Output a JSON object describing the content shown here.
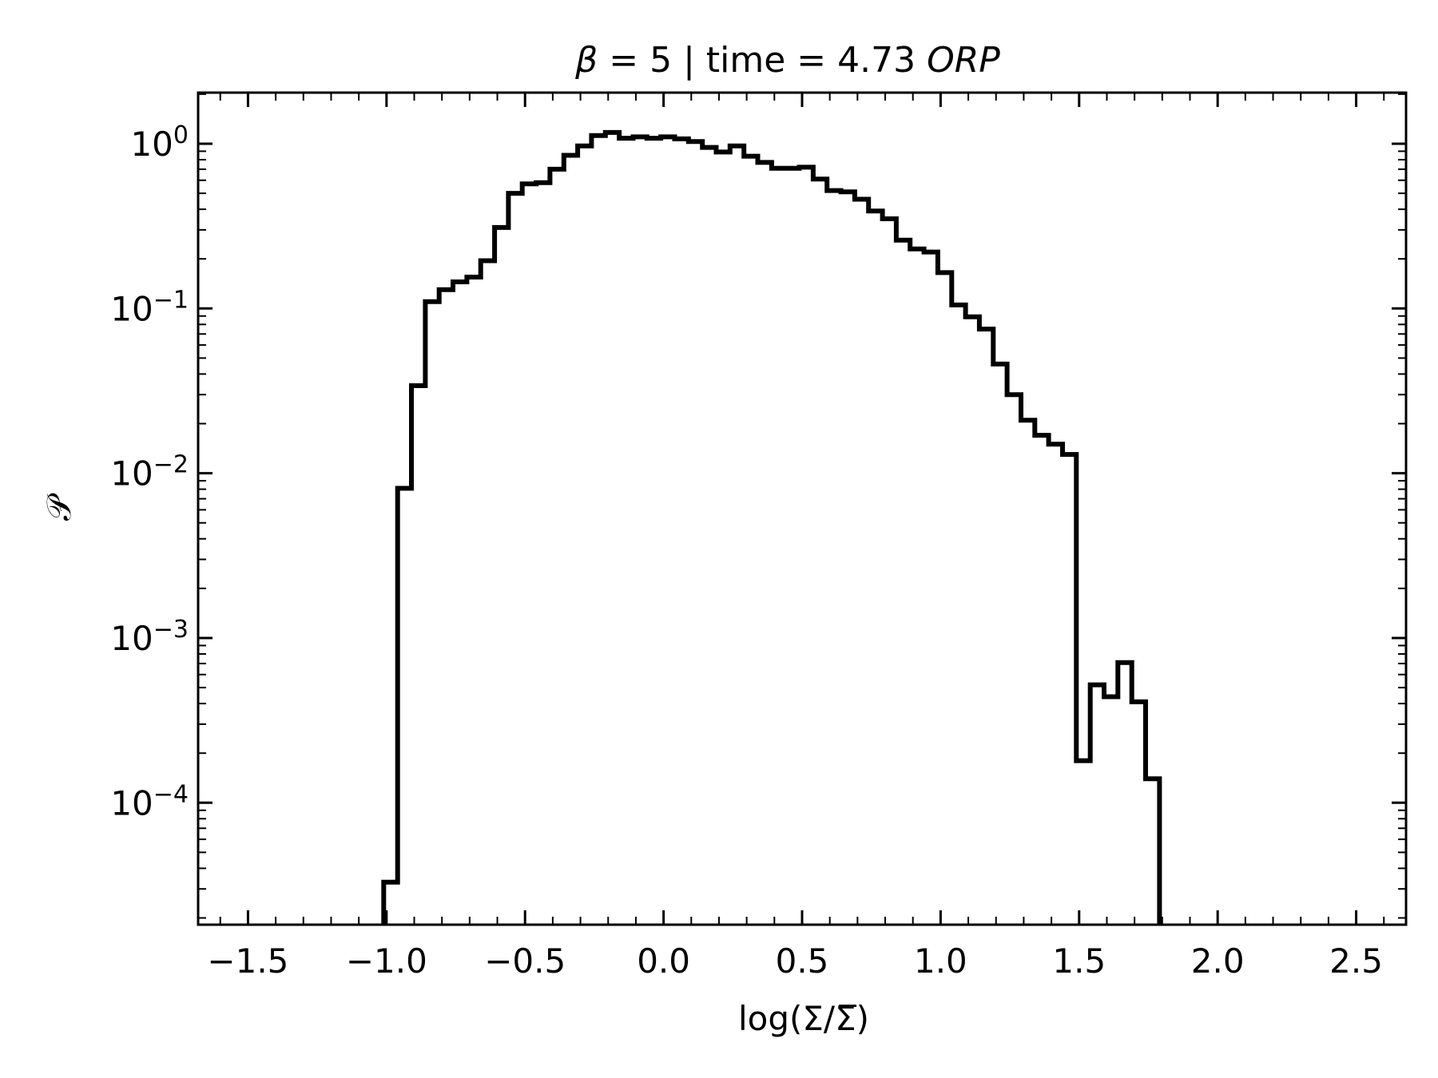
{
  "chart_data": {
    "type": "line",
    "style": "step-histogram",
    "title_parts": {
      "symbol": "β",
      "middle": " = 5 | time = 4.73 ",
      "unit": "ORP"
    },
    "xlabel": "log(Σ/Σ̅)",
    "ylabel": "𝒫",
    "xlim": [
      -1.68,
      2.68
    ],
    "ylim_log10": [
      -4.74,
      0.31
    ],
    "yscale": "log",
    "grid": false,
    "x_ticks": [
      {
        "value": -1.5,
        "label": "−1.5"
      },
      {
        "value": -1.0,
        "label": "−1.0"
      },
      {
        "value": -0.5,
        "label": "−0.5"
      },
      {
        "value": 0.0,
        "label": "0.0"
      },
      {
        "value": 0.5,
        "label": "0.5"
      },
      {
        "value": 1.0,
        "label": "1.0"
      },
      {
        "value": 1.5,
        "label": "1.5"
      },
      {
        "value": 2.0,
        "label": "2.0"
      },
      {
        "value": 2.5,
        "label": "2.5"
      }
    ],
    "y_ticks": [
      {
        "exp": 0,
        "base": "10",
        "sup": "0"
      },
      {
        "exp": -1,
        "base": "10",
        "sup": "−1"
      },
      {
        "exp": -2,
        "base": "10",
        "sup": "−2"
      },
      {
        "exp": -3,
        "base": "10",
        "sup": "−3"
      },
      {
        "exp": -4,
        "base": "10",
        "sup": "−4"
      }
    ],
    "series": [
      {
        "color": "#000000",
        "bins_start": -1.01,
        "bin_width": 0.05,
        "values": [
          3.3e-05,
          0.0081,
          0.034,
          0.11,
          0.13,
          0.145,
          0.155,
          0.195,
          0.31,
          0.5,
          0.57,
          0.58,
          0.7,
          0.85,
          0.97,
          1.12,
          1.17,
          1.08,
          1.1,
          1.08,
          1.1,
          1.07,
          1.03,
          0.95,
          0.89,
          0.97,
          0.84,
          0.77,
          0.71,
          0.71,
          0.72,
          0.61,
          0.52,
          0.51,
          0.46,
          0.39,
          0.35,
          0.26,
          0.23,
          0.22,
          0.165,
          0.105,
          0.089,
          0.075,
          0.046,
          0.03,
          0.021,
          0.017,
          0.015,
          0.013,
          0.00018,
          0.00052,
          0.00044,
          0.00071,
          0.00041,
          0.00014
        ]
      }
    ]
  }
}
